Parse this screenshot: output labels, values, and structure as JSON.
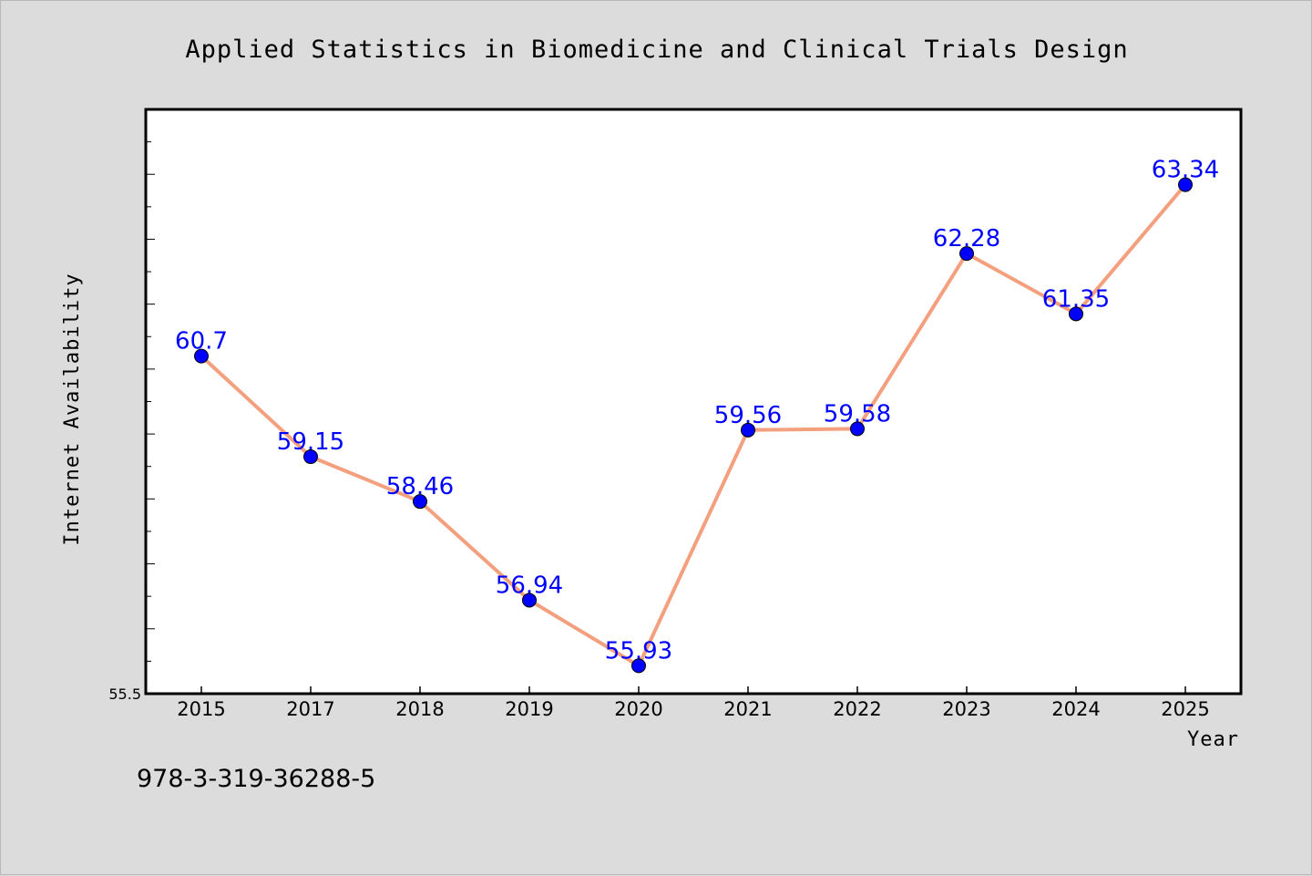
{
  "chart_data": {
    "type": "line",
    "title": "Applied Statistics in Biomedicine and Clinical Trials Design",
    "xlabel": "Year",
    "ylabel": "Internet Availability",
    "categories": [
      "2015",
      "2017",
      "2018",
      "2019",
      "2020",
      "2021",
      "2022",
      "2023",
      "2024",
      "2025"
    ],
    "series": [
      {
        "values": [
          60.7,
          59.15,
          58.46,
          56.94,
          55.93,
          59.56,
          59.58,
          62.28,
          61.35,
          63.34
        ],
        "data_labels": [
          "60.7",
          "59.15",
          "58.46",
          "56.94",
          "55.93",
          "59.56",
          "59.58",
          "62.28",
          "61.35",
          "63.34"
        ]
      }
    ],
    "ylim": [
      55.5,
      64.5
    ],
    "y_tick_labels": [
      "55.5"
    ],
    "grid": false,
    "legend": "none",
    "line_color": "#f4a07e",
    "marker_color": "#0000ff",
    "label_color": "#0000ff"
  },
  "footer": {
    "isbn": "978-3-319-36288-5"
  }
}
